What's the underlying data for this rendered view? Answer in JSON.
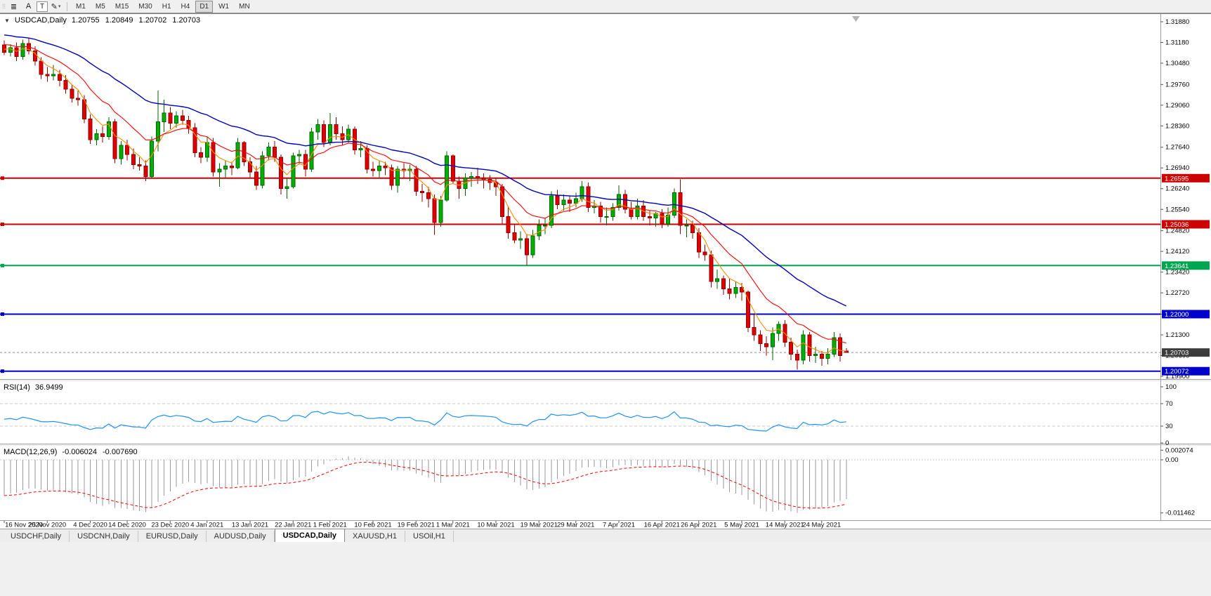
{
  "toolbar": {
    "tool_buttons": [
      {
        "name": "chart-tools",
        "glyph": "≣"
      },
      {
        "name": "font-tool",
        "glyph": "A"
      },
      {
        "name": "text-tool",
        "glyph": "T"
      },
      {
        "name": "draw-tool",
        "glyph": "✎"
      }
    ],
    "timeframes": [
      "M1",
      "M5",
      "M15",
      "M30",
      "H1",
      "H4",
      "D1",
      "W1",
      "MN"
    ],
    "active_timeframe": "D1"
  },
  "tab_bar": {
    "tabs": [
      "USDCHF,Daily",
      "USDCNH,Daily",
      "EURUSD,Daily",
      "AUDUSD,Daily",
      "USDCAD,Daily",
      "XAUUSD,H1",
      "USOil,H1"
    ],
    "active": "USDCAD,Daily"
  },
  "chart_data": [
    {
      "type": "candlestick",
      "title_symbol": "USDCAD,Daily",
      "ohlc_text": "1.20755 1.20849 1.20702 1.20703",
      "collapse_glyph": "▼",
      "y_axis_labels": [
        "1.31880",
        "1.31180",
        "1.30480",
        "1.29760",
        "1.29060",
        "1.28360",
        "1.27640",
        "1.26940",
        "1.26240",
        "1.25540",
        "1.24820",
        "1.24120",
        "1.23420",
        "1.22720",
        "1.22000",
        "1.21300",
        "1.20600",
        "1.19900"
      ],
      "y_range": [
        1.199,
        1.3188
      ],
      "x_labels": [
        "16 Nov 2020",
        "25 Nov 2020",
        "4 Dec 2020",
        "14 Dec 2020",
        "23 Dec 2020",
        "4 Jan 2021",
        "13 Jan 2021",
        "22 Jan 2021",
        "1 Feb 2021",
        "10 Feb 2021",
        "19 Feb 2021",
        "1 Mar 2021",
        "10 Mar 2021",
        "19 Mar 2021",
        "29 Mar 2021",
        "7 Apr 2021",
        "16 Apr 2021",
        "26 Apr 2021",
        "5 May 2021",
        "14 May 2021",
        "24 May 2021"
      ],
      "x_label_indices": [
        0,
        7,
        14,
        20,
        27,
        33,
        40,
        47,
        53,
        60,
        67,
        73,
        80,
        87,
        93,
        100,
        107,
        113,
        120,
        127,
        133
      ],
      "colors": {
        "bull": "#00b000",
        "bull_border": "#006600",
        "bear": "#e00000",
        "bear_border": "#900000"
      },
      "moving_averages": [
        {
          "name": "fast-ema",
          "period": 5,
          "seed_offset": 0.0015,
          "color": "#ff8c00",
          "width": 1.1
        },
        {
          "name": "mid-ema",
          "period": 13,
          "seed_offset": 0.003,
          "color": "#ff0000",
          "width": 1.1
        },
        {
          "name": "slow-ema",
          "period": 34,
          "seed_offset": 0.0062,
          "color": "#0000bb",
          "width": 1.4
        }
      ],
      "horizontal_lines": [
        {
          "price": 1.26595,
          "label": "1.26595",
          "color": "#cc0000",
          "width": 2
        },
        {
          "price": 1.25036,
          "label": "1.25036",
          "color": "#cc0000",
          "width": 2
        },
        {
          "price": 1.23641,
          "label": "1.23641",
          "color": "#00a550",
          "width": 2
        },
        {
          "price": 1.22,
          "label": "1.22000",
          "color": "#0000cc",
          "width": 2
        },
        {
          "price": 1.20072,
          "label": "1.20072",
          "color": "#0000cc",
          "width": 2
        }
      ],
      "current_price": {
        "label": "1.20703",
        "value": 1.20703,
        "tag_color": "#3c3c3c"
      },
      "candles": [
        [
          1.311,
          1.3125,
          1.3075,
          1.3085
        ],
        [
          1.3085,
          1.3112,
          1.307,
          1.31
        ],
        [
          1.31,
          1.3118,
          1.3055,
          1.307
        ],
        [
          1.307,
          1.3128,
          1.306,
          1.3115
        ],
        [
          1.3115,
          1.3132,
          1.3078,
          1.309
        ],
        [
          1.309,
          1.3105,
          1.304,
          1.3055
        ],
        [
          1.3055,
          1.3068,
          1.2995,
          1.301
        ],
        [
          1.301,
          1.3035,
          1.2985,
          1.3005
        ],
        [
          1.3005,
          1.3042,
          1.299,
          1.301
        ],
        [
          1.301,
          1.3025,
          1.297,
          1.299
        ],
        [
          1.299,
          1.3008,
          1.2945,
          1.296
        ],
        [
          1.296,
          1.2975,
          1.2915,
          1.293
        ],
        [
          1.293,
          1.2955,
          1.2905,
          1.2925
        ],
        [
          1.2925,
          1.294,
          1.2845,
          1.286
        ],
        [
          1.286,
          1.2875,
          1.2775,
          1.279
        ],
        [
          1.279,
          1.2825,
          1.277,
          1.281
        ],
        [
          1.281,
          1.2835,
          1.278,
          1.28
        ],
        [
          1.28,
          1.2865,
          1.279,
          1.285
        ],
        [
          1.285,
          1.286,
          1.271,
          1.2725
        ],
        [
          1.2725,
          1.2785,
          1.2705,
          1.277
        ],
        [
          1.277,
          1.279,
          1.272,
          1.274
        ],
        [
          1.274,
          1.276,
          1.269,
          1.2705
        ],
        [
          1.2705,
          1.273,
          1.2685,
          1.27
        ],
        [
          1.27,
          1.272,
          1.265,
          1.2665
        ],
        [
          1.2665,
          1.28,
          1.266,
          1.2785
        ],
        [
          1.2785,
          1.2955,
          1.275,
          1.285
        ],
        [
          1.285,
          1.2925,
          1.2815,
          1.288
        ],
        [
          1.288,
          1.29,
          1.2825,
          1.2845
        ],
        [
          1.2845,
          1.2885,
          1.283,
          1.287
        ],
        [
          1.287,
          1.289,
          1.284,
          1.2855
        ],
        [
          1.2855,
          1.287,
          1.281,
          1.283
        ],
        [
          1.283,
          1.2845,
          1.273,
          1.2745
        ],
        [
          1.2745,
          1.2765,
          1.271,
          1.273
        ],
        [
          1.273,
          1.28,
          1.2715,
          1.278
        ],
        [
          1.278,
          1.2795,
          1.2665,
          1.268
        ],
        [
          1.268,
          1.271,
          1.263,
          1.269
        ],
        [
          1.269,
          1.272,
          1.266,
          1.27
        ],
        [
          1.27,
          1.2715,
          1.267,
          1.2695
        ],
        [
          1.2695,
          1.2795,
          1.269,
          1.278
        ],
        [
          1.278,
          1.2785,
          1.27,
          1.2715
        ],
        [
          1.2715,
          1.273,
          1.266,
          1.268
        ],
        [
          1.268,
          1.27,
          1.262,
          1.2635
        ],
        [
          1.2635,
          1.275,
          1.2625,
          1.2735
        ],
        [
          1.2735,
          1.278,
          1.272,
          1.2765
        ],
        [
          1.2765,
          1.2785,
          1.2715,
          1.273
        ],
        [
          1.273,
          1.274,
          1.2605,
          1.2625
        ],
        [
          1.2625,
          1.266,
          1.259,
          1.263
        ],
        [
          1.263,
          1.2745,
          1.2625,
          1.2735
        ],
        [
          1.2735,
          1.2755,
          1.2705,
          1.274
        ],
        [
          1.274,
          1.2755,
          1.2665,
          1.269
        ],
        [
          1.269,
          1.283,
          1.268,
          1.2815
        ],
        [
          1.2815,
          1.286,
          1.279,
          1.284
        ],
        [
          1.284,
          1.2855,
          1.2765,
          1.278
        ],
        [
          1.278,
          1.288,
          1.277,
          1.284
        ],
        [
          1.284,
          1.2865,
          1.279,
          1.281
        ],
        [
          1.281,
          1.2835,
          1.277,
          1.279
        ],
        [
          1.279,
          1.284,
          1.278,
          1.2825
        ],
        [
          1.2825,
          1.2835,
          1.274,
          1.2755
        ],
        [
          1.2755,
          1.2785,
          1.273,
          1.276
        ],
        [
          1.276,
          1.277,
          1.2675,
          1.269
        ],
        [
          1.269,
          1.2715,
          1.2665,
          1.2685
        ],
        [
          1.2685,
          1.272,
          1.266,
          1.27
        ],
        [
          1.27,
          1.2715,
          1.267,
          1.2695
        ],
        [
          1.2695,
          1.2705,
          1.262,
          1.2635
        ],
        [
          1.2635,
          1.27,
          1.261,
          1.269
        ],
        [
          1.269,
          1.271,
          1.266,
          1.2685
        ],
        [
          1.2685,
          1.2705,
          1.265,
          1.269
        ],
        [
          1.269,
          1.27,
          1.26,
          1.2615
        ],
        [
          1.2615,
          1.264,
          1.258,
          1.261
        ],
        [
          1.261,
          1.263,
          1.256,
          1.259
        ],
        [
          1.259,
          1.2605,
          1.2468,
          1.251
        ],
        [
          1.251,
          1.26,
          1.2495,
          1.2585
        ],
        [
          1.2585,
          1.275,
          1.258,
          1.2735
        ],
        [
          1.2735,
          1.274,
          1.264,
          1.265
        ],
        [
          1.265,
          1.2665,
          1.259,
          1.2625
        ],
        [
          1.2625,
          1.2675,
          1.26,
          1.266
        ],
        [
          1.266,
          1.268,
          1.263,
          1.2665
        ],
        [
          1.2665,
          1.2695,
          1.264,
          1.266
        ],
        [
          1.266,
          1.2675,
          1.2625,
          1.2655
        ],
        [
          1.2655,
          1.267,
          1.262,
          1.2645
        ],
        [
          1.2645,
          1.266,
          1.26,
          1.263
        ],
        [
          1.263,
          1.264,
          1.2505,
          1.253
        ],
        [
          1.253,
          1.256,
          1.2455,
          1.2475
        ],
        [
          1.2475,
          1.2505,
          1.244,
          1.245
        ],
        [
          1.245,
          1.248,
          1.242,
          1.2455
        ],
        [
          1.2455,
          1.247,
          1.2365,
          1.24
        ],
        [
          1.24,
          1.2485,
          1.239,
          1.2465
        ],
        [
          1.2465,
          1.252,
          1.245,
          1.25
        ],
        [
          1.25,
          1.2525,
          1.247,
          1.25
        ],
        [
          1.25,
          1.2615,
          1.249,
          1.26
        ],
        [
          1.26,
          1.262,
          1.2555,
          1.257
        ],
        [
          1.257,
          1.2605,
          1.255,
          1.2585
        ],
        [
          1.2585,
          1.26,
          1.2545,
          1.2575
        ],
        [
          1.2575,
          1.261,
          1.256,
          1.259
        ],
        [
          1.259,
          1.265,
          1.258,
          1.263
        ],
        [
          1.263,
          1.2645,
          1.2545,
          1.256
        ],
        [
          1.256,
          1.2585,
          1.254,
          1.2565
        ],
        [
          1.2565,
          1.258,
          1.251,
          1.253
        ],
        [
          1.253,
          1.256,
          1.25,
          1.253
        ],
        [
          1.253,
          1.2575,
          1.2515,
          1.256
        ],
        [
          1.256,
          1.2635,
          1.255,
          1.2605
        ],
        [
          1.2605,
          1.262,
          1.254,
          1.2555
        ],
        [
          1.2555,
          1.258,
          1.252,
          1.253
        ],
        [
          1.253,
          1.259,
          1.252,
          1.2565
        ],
        [
          1.2565,
          1.2585,
          1.2515,
          1.253
        ],
        [
          1.253,
          1.255,
          1.25,
          1.2525
        ],
        [
          1.2525,
          1.2545,
          1.2495,
          1.254
        ],
        [
          1.254,
          1.2555,
          1.249,
          1.2505
        ],
        [
          1.2505,
          1.256,
          1.2495,
          1.2535
        ],
        [
          1.2535,
          1.2625,
          1.2525,
          1.261
        ],
        [
          1.261,
          1.2655,
          1.247,
          1.25
        ],
        [
          1.25,
          1.252,
          1.246,
          1.25
        ],
        [
          1.25,
          1.2515,
          1.2455,
          1.2475
        ],
        [
          1.2475,
          1.249,
          1.239,
          1.241
        ],
        [
          1.241,
          1.2435,
          1.238,
          1.24
        ],
        [
          1.24,
          1.2415,
          1.229,
          1.231
        ],
        [
          1.231,
          1.235,
          1.2285,
          1.232
        ],
        [
          1.232,
          1.233,
          1.2265,
          1.2285
        ],
        [
          1.2285,
          1.232,
          1.225,
          1.227
        ],
        [
          1.227,
          1.231,
          1.2255,
          1.229
        ],
        [
          1.229,
          1.2305,
          1.2245,
          1.2275
        ],
        [
          1.2275,
          1.228,
          1.214,
          1.2155
        ],
        [
          1.2155,
          1.22,
          1.211,
          1.213
        ],
        [
          1.213,
          1.2145,
          1.2075,
          1.21
        ],
        [
          1.21,
          1.2125,
          1.206,
          1.209
        ],
        [
          1.209,
          1.2155,
          1.2045,
          1.2135
        ],
        [
          1.2135,
          1.2175,
          1.211,
          1.2165
        ],
        [
          1.2165,
          1.218,
          1.209,
          1.2105
        ],
        [
          1.2105,
          1.212,
          1.2045,
          1.2065
        ],
        [
          1.2065,
          1.208,
          1.2013,
          1.2045
        ],
        [
          1.2045,
          1.2145,
          1.203,
          1.213
        ],
        [
          1.213,
          1.214,
          1.204,
          1.206
        ],
        [
          1.206,
          1.209,
          1.2035,
          1.2065
        ],
        [
          1.2065,
          1.2075,
          1.2025,
          1.205
        ],
        [
          1.205,
          1.2085,
          1.203,
          1.2065
        ],
        [
          1.2065,
          1.214,
          1.2055,
          1.212
        ],
        [
          1.212,
          1.2135,
          1.204,
          1.206
        ],
        [
          1.20755,
          1.20849,
          1.20702,
          1.20703
        ]
      ]
    },
    {
      "type": "line",
      "label": "RSI(14)",
      "value_text": "36.9499",
      "color": "#1e90ff",
      "level_lines": [
        70,
        30
      ],
      "y_axis_labels": [
        "100",
        "70",
        "30",
        "0"
      ],
      "seed_gain": 0.0019,
      "seed_loss": 0.0026
    },
    {
      "type": "bar",
      "label": "MACD(12,26,9)",
      "value_text": "-0.006024 -0.007690",
      "histogram_color": "#9a9a9a",
      "signal_color": "#ff0000",
      "y_axis_labels": [
        {
          "text": "0.002074",
          "value": 0.002074
        },
        {
          "text": "0.00",
          "value": 0
        },
        {
          "text": "-0.011462",
          "value": -0.011462
        }
      ],
      "fast_period": 12,
      "slow_period": 26,
      "signal_period": 9,
      "seed_fast": 0.004,
      "seed_slow": 0.012
    }
  ]
}
